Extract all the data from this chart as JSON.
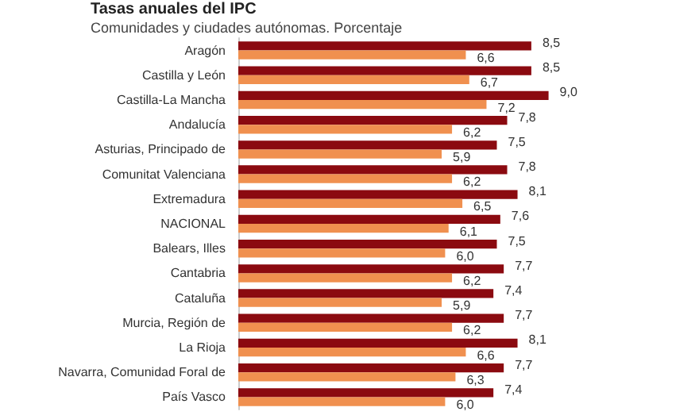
{
  "chart_data": {
    "type": "bar",
    "orientation": "horizontal",
    "title": "Tasas anuales del IPC",
    "subtitle": "Comunidades y ciudades autónomas. Porcentaje",
    "categories": [
      "Aragón",
      "Castilla y León",
      "Castilla-La Mancha",
      "Andalucía",
      "Asturias, Principado de",
      "Comunitat Valenciana",
      "Extremadura",
      "NACIONAL",
      "Balears, Illes",
      "Cantabria",
      "Cataluña",
      "Murcia, Región de",
      "La Rioja",
      "Navarra, Comunidad Foral de",
      "País Vasco"
    ],
    "series": [
      {
        "color": "#8b0a10",
        "values": [
          8.5,
          8.5,
          9.0,
          7.8,
          7.5,
          7.8,
          8.1,
          7.6,
          7.5,
          7.7,
          7.4,
          7.7,
          8.1,
          7.7,
          7.4
        ],
        "value_labels": [
          "8,5",
          "8,5",
          "9,0",
          "7,8",
          "7,5",
          "7,8",
          "8,1",
          "7,6",
          "7,5",
          "7,7",
          "7,4",
          "7,7",
          "8,1",
          "7,7",
          "7,4"
        ]
      },
      {
        "color": "#f0904f",
        "values": [
          6.6,
          6.7,
          7.2,
          6.2,
          5.9,
          6.2,
          6.5,
          6.1,
          6.0,
          6.2,
          5.9,
          6.2,
          6.6,
          6.3,
          6.0
        ],
        "value_labels": [
          "6,6",
          "6,7",
          "7,2",
          "6,2",
          "5,9",
          "6,2",
          "6,5",
          "6,1",
          "6,0",
          "6,2",
          "5,9",
          "6,2",
          "6,6",
          "6,3",
          "6,0"
        ]
      }
    ],
    "tick_labels": "y",
    "grid": false
  }
}
